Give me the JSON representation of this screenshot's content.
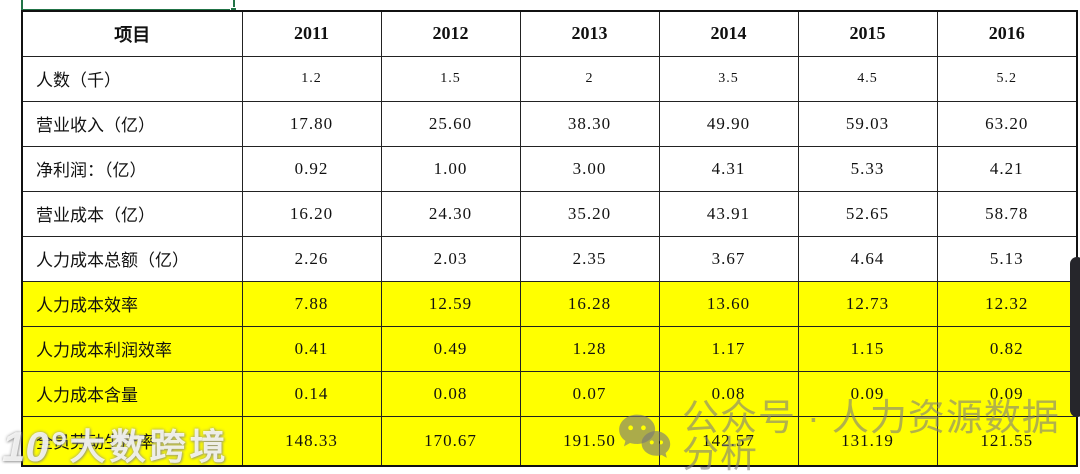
{
  "table": {
    "header": [
      "项目",
      "2011",
      "2012",
      "2013",
      "2014",
      "2015",
      "2016"
    ],
    "rows": [
      {
        "label": "人数（千）",
        "values": [
          "1.2",
          "1.5",
          "2",
          "3.5",
          "4.5",
          "5.2"
        ],
        "highlight": false,
        "small": true
      },
      {
        "label": "营业收入（亿）",
        "values": [
          "17.80",
          "25.60",
          "38.30",
          "49.90",
          "59.03",
          "63.20"
        ],
        "highlight": false,
        "small": false
      },
      {
        "label": "净利润：（亿）",
        "values": [
          "0.92",
          "1.00",
          "3.00",
          "4.31",
          "5.33",
          "4.21"
        ],
        "highlight": false,
        "small": false
      },
      {
        "label": "营业成本（亿）",
        "values": [
          "16.20",
          "24.30",
          "35.20",
          "43.91",
          "52.65",
          "58.78"
        ],
        "highlight": false,
        "small": false
      },
      {
        "label": "人力成本总额（亿）",
        "values": [
          "2.26",
          "2.03",
          "2.35",
          "3.67",
          "4.64",
          "5.13"
        ],
        "highlight": false,
        "small": false
      },
      {
        "label": "人力成本效率",
        "values": [
          "7.88",
          "12.59",
          "16.28",
          "13.60",
          "12.73",
          "12.32"
        ],
        "highlight": true,
        "small": false
      },
      {
        "label": "人力成本利润效率",
        "values": [
          "0.41",
          "0.49",
          "1.28",
          "1.17",
          "1.15",
          "0.82"
        ],
        "highlight": true,
        "small": false
      },
      {
        "label": "人力成本含量",
        "values": [
          "0.14",
          "0.08",
          "0.07",
          "0.08",
          "0.09",
          "0.09"
        ],
        "highlight": true,
        "small": false
      },
      {
        "label": "全员劳动生产率",
        "values": [
          "148.33",
          "170.67",
          "191.50",
          "142.57",
          "131.19",
          "121.55"
        ],
        "highlight": true,
        "small": false
      }
    ]
  },
  "watermarks": {
    "wechat_text": "公众号 · 人力资源数据分析",
    "corner_logo": "10°",
    "corner_text": "大数跨境"
  },
  "colors": {
    "highlight_yellow": "#ffff00",
    "selection_green": "#217346",
    "watermark_gray": "#7d7d7d",
    "border_black": "#222222"
  }
}
